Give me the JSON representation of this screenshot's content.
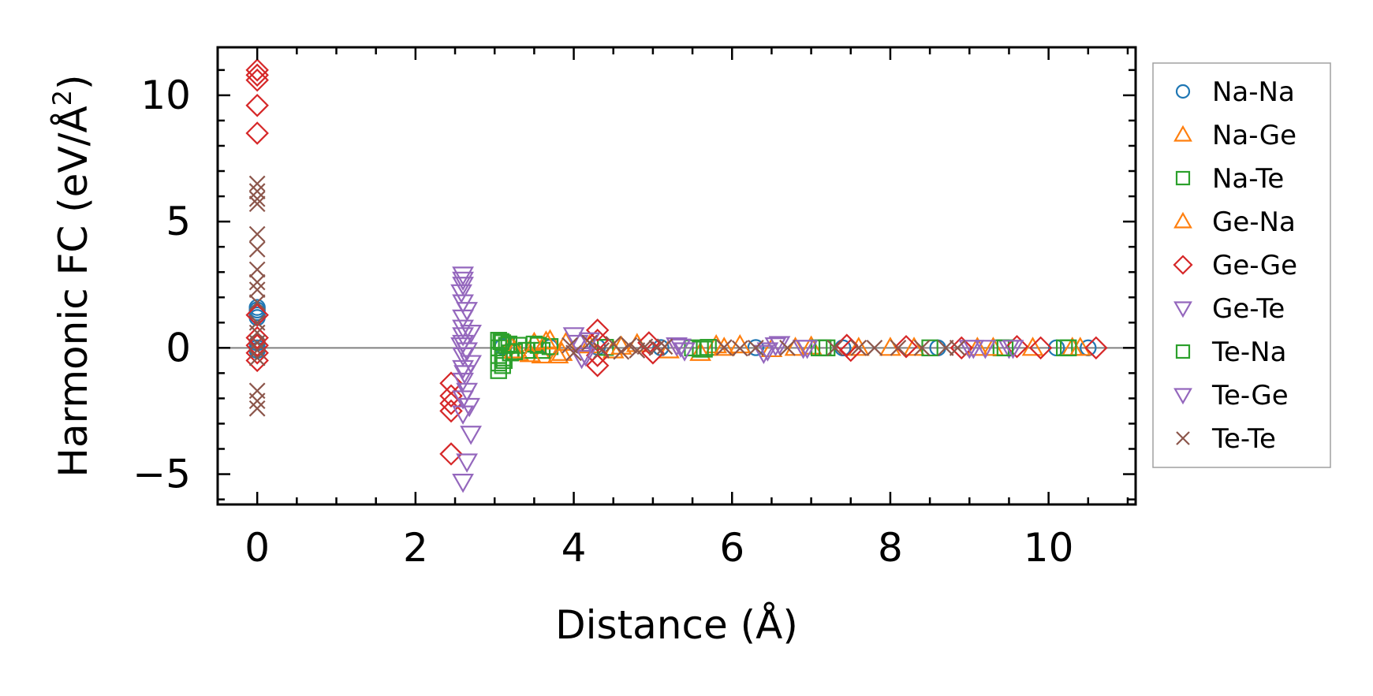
{
  "chart_data": {
    "type": "scatter",
    "xlabel": "Distance (Å)",
    "ylabel_main": "Harmonic FC (eV/Å",
    "ylabel_sup": "2",
    "ylabel_close": ")",
    "xlim": [
      -0.5,
      11.1
    ],
    "ylim": [
      -6.2,
      11.9
    ],
    "xticks": [
      0,
      2,
      4,
      6,
      8,
      10
    ],
    "xtick_labels": [
      "0",
      "2",
      "4",
      "6",
      "8",
      "10"
    ],
    "yticks": [
      -5,
      0,
      5,
      10
    ],
    "ytick_labels": [
      "−5",
      "0",
      "5",
      "10"
    ],
    "zero_line": true,
    "grid": false,
    "legend_position": "right, outside plot",
    "series": [
      {
        "name": "Na-Na",
        "marker": "circle",
        "color": "#1f77b4",
        "filled": false,
        "points": [
          [
            0,
            1.6
          ],
          [
            0,
            1.5
          ],
          [
            0,
            1.4
          ],
          [
            0,
            1.3
          ],
          [
            0,
            1.2
          ],
          [
            0,
            0.2
          ],
          [
            0,
            0.0
          ],
          [
            0,
            -0.1
          ],
          [
            3.1,
            0.05
          ],
          [
            3.7,
            0.02
          ],
          [
            4.3,
            0.03
          ],
          [
            5.1,
            0.01
          ],
          [
            6.3,
            0.01
          ],
          [
            7.4,
            0.0
          ],
          [
            8.6,
            0.0
          ],
          [
            10.1,
            0.0
          ],
          [
            10.5,
            0.0
          ]
        ]
      },
      {
        "name": "Na-Ge",
        "marker": "triangle-up",
        "color": "#ff7f0e",
        "filled": false,
        "points": [
          [
            3.2,
            0.1
          ],
          [
            3.3,
            -0.2
          ],
          [
            3.5,
            0.2
          ],
          [
            3.6,
            -0.3
          ],
          [
            3.7,
            0.3
          ],
          [
            3.8,
            -0.3
          ],
          [
            3.9,
            0.2
          ],
          [
            4.2,
            0.1
          ],
          [
            4.5,
            -0.1
          ],
          [
            4.8,
            0.15
          ],
          [
            5.2,
            -0.1
          ],
          [
            5.6,
            -0.2
          ],
          [
            5.8,
            0.1
          ],
          [
            6.1,
            0.1
          ],
          [
            6.5,
            -0.05
          ],
          [
            7.0,
            0.05
          ],
          [
            7.6,
            0.0
          ],
          [
            8.3,
            0.0
          ],
          [
            9.1,
            0.0
          ],
          [
            9.8,
            0.0
          ],
          [
            10.3,
            0.0
          ]
        ]
      },
      {
        "name": "Na-Te",
        "marker": "square",
        "color": "#2ca02c",
        "filled": false,
        "points": [
          [
            3.05,
            0.3
          ],
          [
            3.05,
            0.0
          ],
          [
            3.05,
            -0.3
          ],
          [
            3.05,
            -0.6
          ],
          [
            3.05,
            -0.9
          ],
          [
            3.1,
            0.2
          ],
          [
            3.1,
            -0.4
          ],
          [
            3.1,
            -0.7
          ],
          [
            3.15,
            0.1
          ],
          [
            3.2,
            -0.2
          ],
          [
            3.3,
            0.1
          ],
          [
            3.4,
            -0.1
          ],
          [
            3.5,
            0.15
          ],
          [
            3.6,
            -0.1
          ],
          [
            3.7,
            0.05
          ],
          [
            4.4,
            0.02
          ],
          [
            5.5,
            0.0
          ],
          [
            5.6,
            -0.05
          ],
          [
            5.7,
            0.02
          ],
          [
            7.1,
            0.0
          ],
          [
            7.2,
            0.0
          ],
          [
            8.5,
            0.0
          ],
          [
            9.4,
            0.0
          ],
          [
            10.2,
            0.0
          ]
        ]
      },
      {
        "name": "Ge-Na",
        "marker": "triangle-up",
        "color": "#ff7f0e",
        "filled": false,
        "points": [
          [
            3.25,
            -0.1
          ],
          [
            3.45,
            -0.25
          ],
          [
            3.65,
            0.25
          ],
          [
            3.85,
            -0.2
          ],
          [
            4.6,
            0.05
          ],
          [
            5.9,
            0.0
          ],
          [
            6.8,
            0.0
          ],
          [
            8.0,
            0.0
          ],
          [
            9.3,
            0.0
          ],
          [
            10.4,
            0.0
          ]
        ]
      },
      {
        "name": "Ge-Ge",
        "marker": "diamond",
        "color": "#d62728",
        "filled": false,
        "points": [
          [
            0,
            11.0
          ],
          [
            0,
            10.8
          ],
          [
            0,
            10.6
          ],
          [
            0,
            9.6
          ],
          [
            0,
            8.5
          ],
          [
            0,
            1.3
          ],
          [
            0,
            0.4
          ],
          [
            0,
            0.1
          ],
          [
            0,
            -0.2
          ],
          [
            0,
            -0.5
          ],
          [
            2.45,
            -1.4
          ],
          [
            2.45,
            -1.9
          ],
          [
            2.45,
            -2.2
          ],
          [
            2.45,
            -2.5
          ],
          [
            2.45,
            -4.2
          ],
          [
            4.3,
            0.7
          ],
          [
            4.3,
            -0.7
          ],
          [
            4.3,
            0.3
          ],
          [
            4.3,
            -0.3
          ],
          [
            4.95,
            0.2
          ],
          [
            5.0,
            -0.2
          ],
          [
            7.45,
            0.1
          ],
          [
            7.5,
            -0.1
          ],
          [
            8.2,
            0.05
          ],
          [
            8.9,
            0.0
          ],
          [
            9.6,
            0.05
          ],
          [
            9.9,
            0.0
          ],
          [
            10.6,
            0.0
          ]
        ]
      },
      {
        "name": "Ge-Te",
        "marker": "triangle-down",
        "color": "#9467bd",
        "filled": false,
        "points": [
          [
            2.6,
            2.9
          ],
          [
            2.6,
            2.7
          ],
          [
            2.6,
            2.5
          ],
          [
            2.6,
            1.8
          ],
          [
            2.6,
            1.2
          ],
          [
            2.6,
            0.8
          ],
          [
            2.6,
            0.5
          ],
          [
            2.6,
            0.2
          ],
          [
            2.6,
            -0.3
          ],
          [
            2.6,
            -0.8
          ],
          [
            2.6,
            -1.3
          ],
          [
            2.6,
            -2.0
          ],
          [
            2.6,
            -2.6
          ],
          [
            2.6,
            -5.3
          ],
          [
            2.65,
            1.5
          ],
          [
            2.65,
            -0.1
          ],
          [
            2.65,
            -1.7
          ],
          [
            2.65,
            -4.5
          ],
          [
            2.7,
            0.6
          ],
          [
            2.7,
            -0.6
          ],
          [
            2.7,
            -3.4
          ],
          [
            4.0,
            0.5
          ],
          [
            4.1,
            -0.4
          ],
          [
            4.2,
            0.3
          ],
          [
            5.3,
            0.1
          ],
          [
            5.4,
            -0.1
          ],
          [
            6.4,
            -0.2
          ],
          [
            6.6,
            0.15
          ],
          [
            6.9,
            0.0
          ],
          [
            9.0,
            0.0
          ],
          [
            9.2,
            0.0
          ],
          [
            9.5,
            0.0
          ]
        ]
      },
      {
        "name": "Te-Na",
        "marker": "square",
        "color": "#2ca02c",
        "filled": false,
        "points": [
          [
            3.08,
            0.25
          ],
          [
            3.12,
            -0.5
          ],
          [
            3.18,
            0.15
          ],
          [
            3.25,
            -0.15
          ],
          [
            3.55,
            0.1
          ],
          [
            5.65,
            -0.05
          ],
          [
            7.15,
            0.0
          ],
          [
            9.45,
            0.0
          ],
          [
            10.25,
            0.0
          ]
        ]
      },
      {
        "name": "Te-Ge",
        "marker": "triangle-down",
        "color": "#9467bd",
        "filled": false,
        "points": [
          [
            2.58,
            2.2
          ],
          [
            2.58,
            0.1
          ],
          [
            2.62,
            -1.0
          ],
          [
            2.68,
            -2.3
          ],
          [
            4.05,
            0.2
          ],
          [
            4.15,
            -0.3
          ],
          [
            5.35,
            0.05
          ],
          [
            6.45,
            -0.1
          ],
          [
            6.55,
            0.1
          ],
          [
            6.95,
            0.0
          ],
          [
            9.05,
            0.0
          ],
          [
            9.55,
            0.0
          ]
        ]
      },
      {
        "name": "Te-Te",
        "marker": "x",
        "color": "#8c564b",
        "filled": false,
        "points": [
          [
            0,
            6.5
          ],
          [
            0,
            6.2
          ],
          [
            0,
            5.9
          ],
          [
            0,
            5.7
          ],
          [
            0,
            4.5
          ],
          [
            0,
            3.9
          ],
          [
            0,
            3.1
          ],
          [
            0,
            2.6
          ],
          [
            0,
            2.3
          ],
          [
            0,
            1.8
          ],
          [
            0,
            1.0
          ],
          [
            0,
            0.6
          ],
          [
            0,
            0.2
          ],
          [
            0,
            -0.1
          ],
          [
            0,
            -0.4
          ],
          [
            0,
            -1.7
          ],
          [
            0,
            -2.1
          ],
          [
            0,
            -2.4
          ],
          [
            3.95,
            0.1
          ],
          [
            4.0,
            -0.2
          ],
          [
            4.2,
            0.2
          ],
          [
            4.35,
            -0.1
          ],
          [
            4.5,
            0.15
          ],
          [
            4.6,
            -0.15
          ],
          [
            4.7,
            0.1
          ],
          [
            4.8,
            -0.1
          ],
          [
            4.9,
            0.05
          ],
          [
            5.05,
            0.0
          ],
          [
            5.15,
            0.05
          ],
          [
            5.9,
            0.02
          ],
          [
            6.1,
            -0.02
          ],
          [
            6.3,
            0.0
          ],
          [
            6.7,
            0.0
          ],
          [
            7.3,
            0.0
          ],
          [
            7.6,
            0.0
          ],
          [
            7.8,
            0.0
          ],
          [
            8.1,
            0.0
          ],
          [
            8.4,
            0.0
          ],
          [
            8.7,
            0.0
          ],
          [
            8.85,
            0.0
          ]
        ]
      }
    ]
  }
}
